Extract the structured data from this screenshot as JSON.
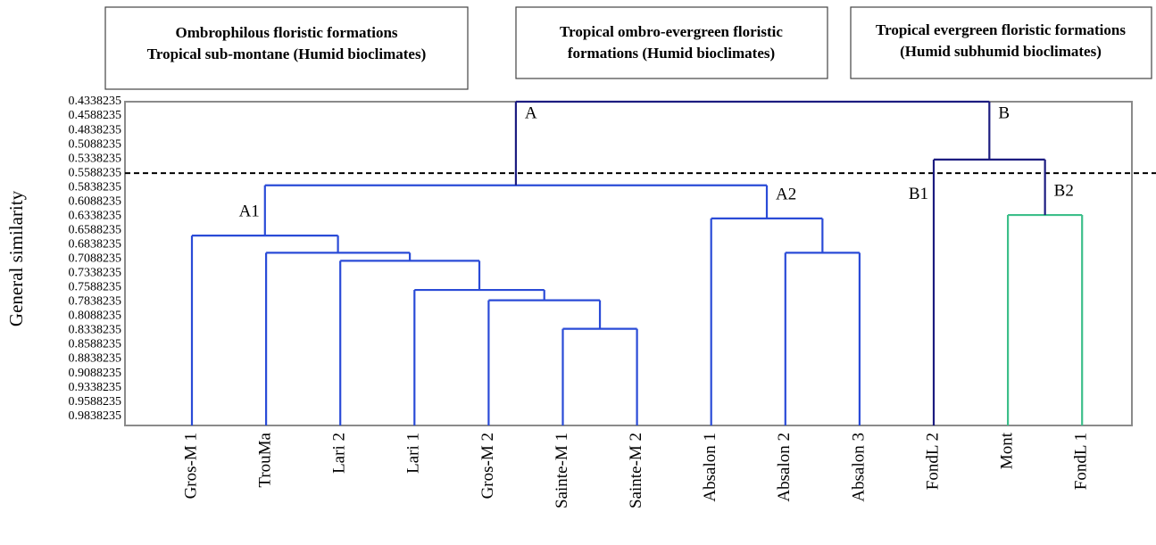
{
  "header": [
    [
      "Ombrophilous floristic formations",
      "Tropical sub-montane (Humid bioclimates)"
    ],
    [
      "Tropical ombro-evergreen floristic",
      "formations (Humid bioclimates)"
    ],
    [
      "Tropical evergreen floristic formations",
      "(Humid subhumid bioclimates)"
    ]
  ],
  "chart_data": {
    "type": "dendrogram",
    "ylabel": "General similarity",
    "ylim": [
      0.4338235,
      1.0
    ],
    "yticks": [
      0.4338235,
      0.4588235,
      0.4838235,
      0.5088235,
      0.5338235,
      0.5588235,
      0.5838235,
      0.6088235,
      0.6338235,
      0.6588235,
      0.6838235,
      0.7088235,
      0.7338235,
      0.7588235,
      0.7838235,
      0.8088235,
      0.8338235,
      0.8588235,
      0.8838235,
      0.9088235,
      0.9338235,
      0.9588235,
      0.9838235
    ],
    "cut": 0.5588235,
    "tree": {
      "height": 0.4338235,
      "color": "#1c1c80",
      "children": [
        {
          "label": "A",
          "height": 0.58,
          "color": "#2a4bd7",
          "children": [
            {
              "label": "A1",
              "height": 0.668,
              "color": "#2a4bd7",
              "children": [
                {
                  "name": "Gros-M 1"
                },
                {
                  "height": 0.698,
                  "color": "#2a4bd7",
                  "children": [
                    {
                      "name": "TrouMa"
                    },
                    {
                      "height": 0.712,
                      "color": "#2a4bd7",
                      "children": [
                        {
                          "name": "Lari 2"
                        },
                        {
                          "height": 0.763,
                          "color": "#2a4bd7",
                          "children": [
                            {
                              "name": "Lari 1"
                            },
                            {
                              "height": 0.781,
                              "color": "#2a4bd7",
                              "children": [
                                {
                                  "name": "Gros-M 2"
                                },
                                {
                                  "height": 0.831,
                                  "color": "#2a4bd7",
                                  "children": [
                                    {
                                      "name": "Sainte-M 1"
                                    },
                                    {
                                      "name": "Sainte-M 2"
                                    }
                                  ]
                                }
                              ]
                            }
                          ]
                        }
                      ]
                    }
                  ]
                }
              ]
            },
            {
              "label": "A2",
              "height": 0.638,
              "color": "#2a4bd7",
              "children": [
                {
                  "name": "Absalon 1"
                },
                {
                  "height": 0.698,
                  "color": "#2a4bd7",
                  "children": [
                    {
                      "name": "Absalon 2"
                    },
                    {
                      "name": "Absalon 3"
                    }
                  ]
                }
              ]
            }
          ]
        },
        {
          "label": "B",
          "height": 0.535,
          "color": "#1c1c80",
          "children": [
            {
              "name": "FondL 2",
              "label": "B1"
            },
            {
              "label": "B2",
              "height": 0.632,
              "color": "#3dbf8a",
              "children": [
                {
                  "name": "Mont"
                },
                {
                  "name": "FondL 1"
                }
              ]
            }
          ]
        }
      ]
    }
  }
}
